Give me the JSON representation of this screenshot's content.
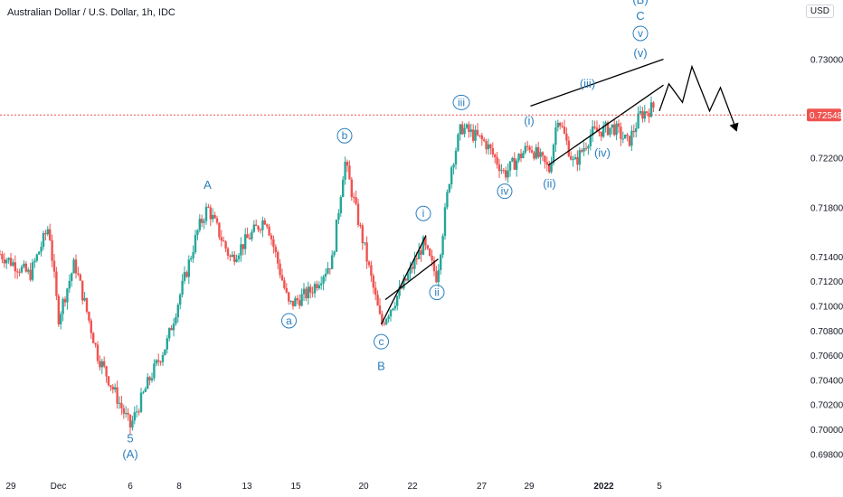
{
  "header": {
    "title": "Australian Dollar / U.S. Dollar, 1h, IDC",
    "currency": "USD"
  },
  "colors": {
    "up": "#26a69a",
    "down": "#ef5350",
    "wave": "#2a7fbf",
    "price_line": "#ef5350",
    "price_tag": "#ef5350"
  },
  "chart_data": {
    "type": "candlestick",
    "x_ticks": [
      "29",
      "Dec",
      "6",
      "8",
      "13",
      "15",
      "20",
      "22",
      "27",
      "29",
      "2022",
      "5"
    ],
    "y_ticks": [
      "0.73000",
      "0.72600",
      "0.72200",
      "0.71800",
      "0.71400",
      "0.71200",
      "0.71000",
      "0.70800",
      "0.70600",
      "0.70400",
      "0.70200",
      "0.70000",
      "0.69800"
    ],
    "ylim": [
      0.6967,
      0.7348
    ],
    "last_price": "0.72548",
    "last_price_value": 0.72548,
    "path": [
      [
        0,
        0.7142
      ],
      [
        2.2,
        0.7125
      ],
      [
        3.6,
        0.7165
      ],
      [
        4.3,
        0.709
      ],
      [
        5.5,
        0.7135
      ],
      [
        7.2,
        0.706
      ],
      [
        9.6,
        0.7002
      ],
      [
        11.0,
        0.704
      ],
      [
        12.3,
        0.707
      ],
      [
        14.6,
        0.7162
      ],
      [
        15.3,
        0.718
      ],
      [
        17.0,
        0.7138
      ],
      [
        19.6,
        0.7172
      ],
      [
        21.3,
        0.71
      ],
      [
        22.9,
        0.7112
      ],
      [
        24.5,
        0.7137
      ],
      [
        25.4,
        0.7218
      ],
      [
        26.8,
        0.715
      ],
      [
        28.1,
        0.7085
      ],
      [
        29.8,
        0.7118
      ],
      [
        31.2,
        0.715
      ],
      [
        32.2,
        0.7123
      ],
      [
        33.2,
        0.721
      ],
      [
        34.0,
        0.7245
      ],
      [
        35.8,
        0.7232
      ],
      [
        37.2,
        0.7207
      ],
      [
        39.0,
        0.723
      ],
      [
        40.5,
        0.721
      ],
      [
        41.1,
        0.7255
      ],
      [
        42.3,
        0.7214
      ],
      [
        43.6,
        0.724
      ],
      [
        45.2,
        0.7245
      ],
      [
        46.3,
        0.7232
      ],
      [
        47.2,
        0.7255
      ],
      [
        48.3,
        0.7262
      ]
    ],
    "annotations": [
      {
        "text": "5",
        "x": 9.6,
        "y": 0.69895,
        "style": "plain"
      },
      {
        "text": "(A)",
        "x": 9.6,
        "y": 0.69765,
        "style": "plain"
      },
      {
        "text": "A",
        "x": 15.3,
        "y": 0.7195,
        "style": "plain"
      },
      {
        "text": "a",
        "x": 21.3,
        "y": 0.7085,
        "style": "circle"
      },
      {
        "text": "b",
        "x": 25.4,
        "y": 0.7235,
        "style": "circle"
      },
      {
        "text": "c",
        "x": 28.1,
        "y": 0.7068,
        "style": "circle"
      },
      {
        "text": "B",
        "x": 28.1,
        "y": 0.7048,
        "style": "plain"
      },
      {
        "text": "i",
        "x": 31.2,
        "y": 0.7172,
        "style": "circle"
      },
      {
        "text": "ii",
        "x": 32.2,
        "y": 0.7108,
        "style": "circle"
      },
      {
        "text": "iii",
        "x": 34.0,
        "y": 0.7262,
        "style": "circle"
      },
      {
        "text": "iv",
        "x": 37.2,
        "y": 0.719,
        "style": "circle"
      },
      {
        "text": "(i)",
        "x": 39.0,
        "y": 0.7247,
        "style": "plain"
      },
      {
        "text": "(ii)",
        "x": 40.5,
        "y": 0.7196,
        "style": "plain"
      },
      {
        "text": "(iii)",
        "x": 43.3,
        "y": 0.7277,
        "style": "plain"
      },
      {
        "text": "(iv)",
        "x": 44.4,
        "y": 0.7221,
        "style": "plain"
      },
      {
        "text": "(v)",
        "x": 47.2,
        "y": 0.7302,
        "style": "plain"
      },
      {
        "text": "v",
        "x": 47.2,
        "y": 0.7318,
        "style": "circle"
      },
      {
        "text": "C",
        "x": 47.2,
        "y": 0.7332,
        "style": "plain"
      },
      {
        "text": "(B)",
        "x": 47.2,
        "y": 0.7345,
        "style": "plain"
      }
    ],
    "grid": false
  }
}
